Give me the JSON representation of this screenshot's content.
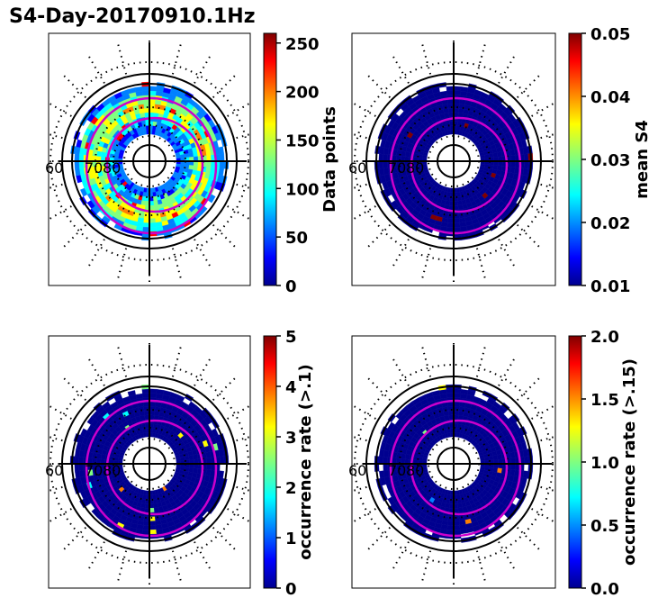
{
  "title": "S4-Day-20170910.1Hz",
  "colormap": [
    "#00008f",
    "#0000ff",
    "#0080ff",
    "#00ffff",
    "#80ff80",
    "#ffff00",
    "#ff8000",
    "#ff0000",
    "#800000"
  ],
  "panel_colors": {
    "frame": "#000000",
    "contour": "#cc00cc",
    "background_bin": "#00008f"
  },
  "chart_data": [
    {
      "type": "heatmap",
      "projection": "polar",
      "name": "data-points",
      "colorbar_label": "Data points",
      "vmin": 0,
      "vmax": 260,
      "ticks": [
        "0",
        "50",
        "100",
        "150",
        "200",
        "250"
      ],
      "tick_values": [
        0,
        50,
        100,
        150,
        200,
        250
      ],
      "lat_labels": [
        "60",
        "70",
        "80"
      ],
      "value_pattern": "high-ring"
    },
    {
      "type": "heatmap",
      "projection": "polar",
      "name": "mean-s4",
      "colorbar_label": "mean S4",
      "vmin": 0.01,
      "vmax": 0.05,
      "ticks": [
        "0.01",
        "0.02",
        "0.03",
        "0.04",
        "0.05"
      ],
      "tick_values": [
        0.01,
        0.02,
        0.03,
        0.04,
        0.05
      ],
      "lat_labels": [
        "60",
        "70",
        "80"
      ],
      "value_pattern": "low"
    },
    {
      "type": "heatmap",
      "projection": "polar",
      "name": "occurrence-rate-01",
      "colorbar_label": "occurrence rate (>.1)",
      "vmin": 0,
      "vmax": 5,
      "ticks": [
        "0",
        "1",
        "2",
        "3",
        "4",
        "5"
      ],
      "tick_values": [
        0,
        1,
        2,
        3,
        4,
        5
      ],
      "lat_labels": [
        "60",
        "70",
        "80"
      ],
      "value_pattern": "sparse"
    },
    {
      "type": "heatmap",
      "projection": "polar",
      "name": "occurrence-rate-015",
      "colorbar_label": "occurrence rate (>.15)",
      "vmin": 0.0,
      "vmax": 2.0,
      "ticks": [
        "0.0",
        "0.5",
        "1.0",
        "1.5",
        "2.0"
      ],
      "tick_values": [
        0.0,
        0.5,
        1.0,
        1.5,
        2.0
      ],
      "lat_labels": [
        "60",
        "70",
        "80"
      ],
      "value_pattern": "sparse-low"
    }
  ]
}
